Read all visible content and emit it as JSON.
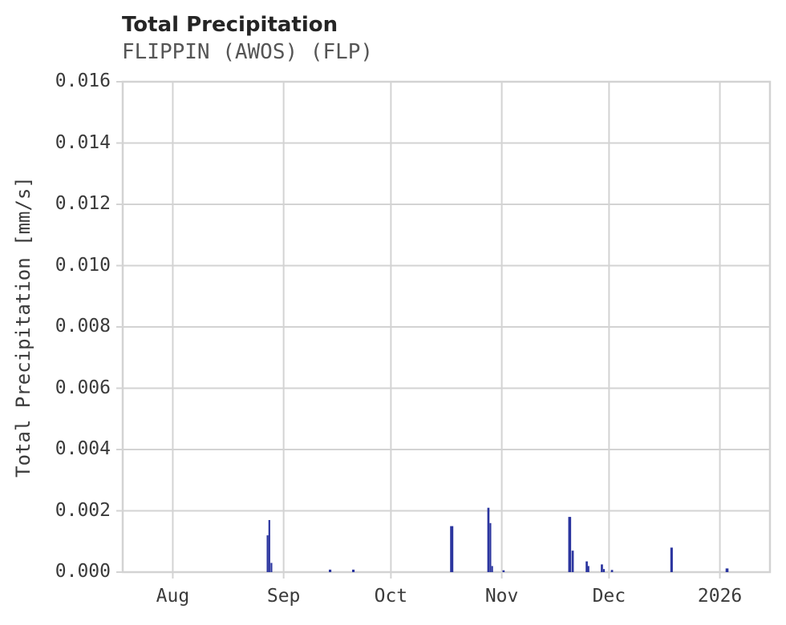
{
  "header": {
    "title": "Total Precipitation",
    "subtitle": "FLIPPIN (AWOS) (FLP)"
  },
  "chart_data": {
    "type": "bar",
    "title": "Total Precipitation",
    "station": "FLIPPIN (AWOS) (FLP)",
    "xlabel": "",
    "ylabel": "Total Precipitation [mm/s]",
    "ylim": [
      0,
      0.016
    ],
    "xlim": [
      "2025-07-18T00:00",
      "2026-01-15T00:00"
    ],
    "grid": true,
    "legend_position": "none",
    "bar_color": "#2b359f",
    "grid_color": "#d3d3d3",
    "tick_color": "#d3d3d3",
    "y_ticks": [
      {
        "value": 0.0,
        "label": "0.000"
      },
      {
        "value": 0.002,
        "label": "0.002"
      },
      {
        "value": 0.004,
        "label": "0.004"
      },
      {
        "value": 0.006,
        "label": "0.006"
      },
      {
        "value": 0.008,
        "label": "0.008"
      },
      {
        "value": 0.01,
        "label": "0.010"
      },
      {
        "value": 0.012,
        "label": "0.012"
      },
      {
        "value": 0.014,
        "label": "0.014"
      },
      {
        "value": 0.016,
        "label": "0.016"
      }
    ],
    "x_ticks": [
      {
        "date": "2025-08-01T00:00",
        "label": "Aug"
      },
      {
        "date": "2025-09-01T00:00",
        "label": "Sep"
      },
      {
        "date": "2025-10-01T00:00",
        "label": "Oct"
      },
      {
        "date": "2025-11-01T00:00",
        "label": "Nov"
      },
      {
        "date": "2025-12-01T00:00",
        "label": "Dec"
      },
      {
        "date": "2026-01-01T00:00",
        "label": "2026"
      }
    ],
    "points": [
      {
        "t": "2025-08-27T12:00",
        "v": 0.0012,
        "w_days": 0.5
      },
      {
        "t": "2025-08-28T00:00",
        "v": 0.0017,
        "w_days": 0.5
      },
      {
        "t": "2025-08-28T14:00",
        "v": 0.0003,
        "w_days": 0.5
      },
      {
        "t": "2025-09-14T00:00",
        "v": 8e-05,
        "w_days": 0.7
      },
      {
        "t": "2025-09-20T12:00",
        "v": 8e-05,
        "w_days": 0.7
      },
      {
        "t": "2025-10-18T00:00",
        "v": 0.0015,
        "w_days": 0.9
      },
      {
        "t": "2025-10-28T06:00",
        "v": 0.0021,
        "w_days": 0.6
      },
      {
        "t": "2025-10-28T20:00",
        "v": 0.0016,
        "w_days": 0.4
      },
      {
        "t": "2025-10-29T08:00",
        "v": 0.0002,
        "w_days": 0.4
      },
      {
        "t": "2025-11-01T12:00",
        "v": 6e-05,
        "w_days": 0.6
      },
      {
        "t": "2025-11-20T00:00",
        "v": 0.0018,
        "w_days": 0.8
      },
      {
        "t": "2025-11-20T20:00",
        "v": 0.0007,
        "w_days": 0.6
      },
      {
        "t": "2025-11-24T18:00",
        "v": 0.00035,
        "w_days": 0.6
      },
      {
        "t": "2025-11-25T06:00",
        "v": 0.0002,
        "w_days": 0.5
      },
      {
        "t": "2025-11-29T00:00",
        "v": 0.00025,
        "w_days": 0.6
      },
      {
        "t": "2025-11-29T14:00",
        "v": 0.0001,
        "w_days": 0.5
      },
      {
        "t": "2025-12-01T20:00",
        "v": 7e-05,
        "w_days": 0.6
      },
      {
        "t": "2025-12-18T12:00",
        "v": 0.0008,
        "w_days": 0.7
      },
      {
        "t": "2026-01-03T00:00",
        "v": 0.00012,
        "w_days": 0.8
      }
    ]
  }
}
